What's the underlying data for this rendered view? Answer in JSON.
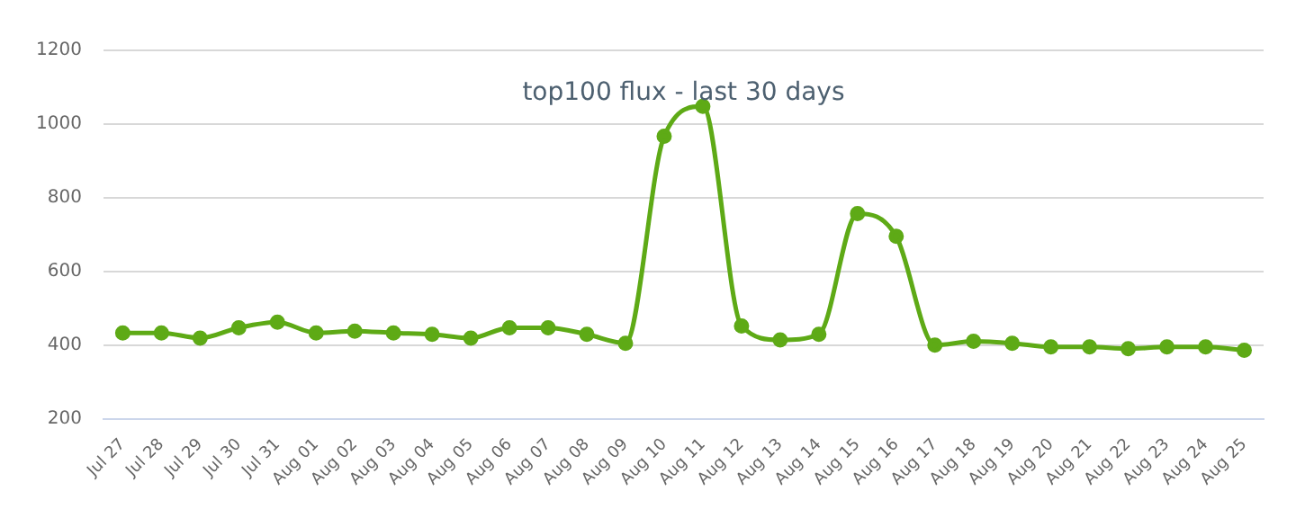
{
  "chart_data": {
    "type": "line",
    "title": "top100 flux - last 30 days",
    "categories": [
      "Jul 27",
      "Jul 28",
      "Jul 29",
      "Jul 30",
      "Jul 31",
      "Aug 01",
      "Aug 02",
      "Aug 03",
      "Aug 04",
      "Aug 05",
      "Aug 06",
      "Aug 07",
      "Aug 08",
      "Aug 09",
      "Aug 10",
      "Aug 11",
      "Aug 12",
      "Aug 13",
      "Aug 14",
      "Aug 15",
      "Aug 16",
      "Aug 17",
      "Aug 18",
      "Aug 19",
      "Aug 20",
      "Aug 21",
      "Aug 22",
      "Aug 23",
      "Aug 24",
      "Aug 25"
    ],
    "series": [
      {
        "color": "#5eaa16",
        "values": [
          433,
          433,
          419,
          447,
          462,
          433,
          438,
          433,
          429,
          419,
          447,
          447,
          429,
          405,
          967,
          1048,
          452,
          414,
          429,
          757,
          695,
          400,
          410,
          405,
          395,
          395,
          390,
          395,
          395,
          386
        ]
      }
    ],
    "ylim": [
      200,
      1200
    ],
    "yticks": [
      200,
      400,
      600,
      800,
      1000,
      1200
    ],
    "grid": "y",
    "marker": "circle",
    "line_style": "solid",
    "legend": false
  }
}
